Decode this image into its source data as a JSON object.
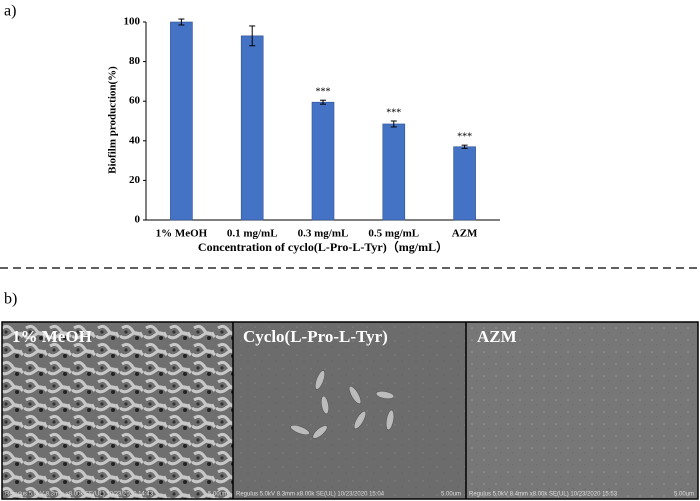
{
  "chart_data": {
    "type": "bar",
    "categories": [
      "1% MeOH",
      "0.1 mg/mL",
      "0.3 mg/mL",
      "0.5 mg/mL",
      "AZM"
    ],
    "values": [
      100,
      93,
      59.5,
      48.5,
      37
    ],
    "errors": [
      1.5,
      5,
      1,
      1.5,
      0.8
    ],
    "annotations": [
      null,
      null,
      "***",
      "***",
      "***"
    ],
    "color": "#4472c4",
    "y_label": "Biofilm production(%)",
    "x_label": "Concentration of cyclo(L-Pro-L-Tyr)（mg/mL）",
    "ylim": [
      0,
      100
    ],
    "yticks": [
      0,
      20,
      40,
      60,
      80,
      100
    ],
    "grid": false
  },
  "panel_labels": [
    "a)",
    "b)"
  ],
  "images": [
    {
      "label": "1% MeOH",
      "footer": "Regulus 5.0kV 8.3mm x8.00k SE(UL) 10/23/2020 14:43",
      "scale": "5.00um"
    },
    {
      "label": "Cyclo(L-Pro-L-Tyr)",
      "footer": "Regulus 5.0kV 8.3mm x8.00k SE(UL) 10/23/2020 15:04",
      "scale": "5.00um"
    },
    {
      "label": "AZM",
      "footer": "Regulus 5.0kV 8.4mm x8.00k SE(UL) 10/23/2020 15:53",
      "scale": "5.00um"
    }
  ]
}
